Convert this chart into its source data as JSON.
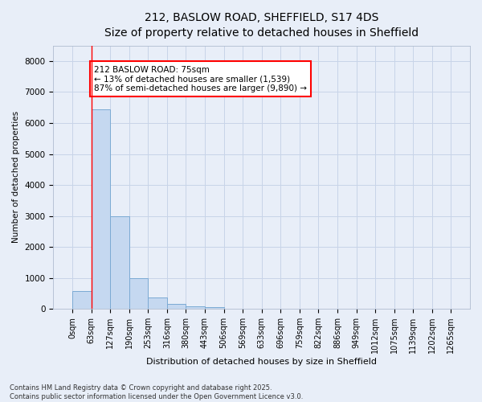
{
  "title_line1": "212, BASLOW ROAD, SHEFFIELD, S17 4DS",
  "title_line2": "Size of property relative to detached houses in Sheffield",
  "xlabel": "Distribution of detached houses by size in Sheffield",
  "ylabel": "Number of detached properties",
  "annotation_title": "212 BASLOW ROAD: 75sqm",
  "annotation_line2": "← 13% of detached houses are smaller (1,539)",
  "annotation_line3": "87% of semi-detached houses are larger (9,890) →",
  "footnote_line1": "Contains HM Land Registry data © Crown copyright and database right 2025.",
  "footnote_line2": "Contains public sector information licensed under the Open Government Licence v3.0.",
  "bar_values": [
    580,
    6450,
    2980,
    1000,
    370,
    170,
    80,
    60,
    0,
    0,
    0,
    0,
    0,
    0,
    0,
    0,
    0,
    0,
    0,
    0
  ],
  "bar_color": "#c5d8f0",
  "bar_edge_color": "#7baad4",
  "bar_width": 1.0,
  "x_tick_labels": [
    "0sqm",
    "63sqm",
    "127sqm",
    "190sqm",
    "253sqm",
    "316sqm",
    "380sqm",
    "443sqm",
    "506sqm",
    "569sqm",
    "633sqm",
    "696sqm",
    "759sqm",
    "822sqm",
    "886sqm",
    "949sqm",
    "1012sqm",
    "1075sqm",
    "1139sqm",
    "1202sqm",
    "1265sqm"
  ],
  "ylim": [
    0,
    8500
  ],
  "yticks": [
    0,
    1000,
    2000,
    3000,
    4000,
    5000,
    6000,
    7000,
    8000
  ],
  "vline_x": 1.0,
  "grid_color": "#c8d4e8",
  "background_color": "#e8eef8",
  "axes_background": "#e8eef8",
  "title_fontsize": 10,
  "subtitle_fontsize": 9,
  "xlabel_fontsize": 8,
  "ylabel_fontsize": 7.5,
  "tick_fontsize": 7,
  "annot_fontsize": 7.5,
  "footnote_fontsize": 6
}
